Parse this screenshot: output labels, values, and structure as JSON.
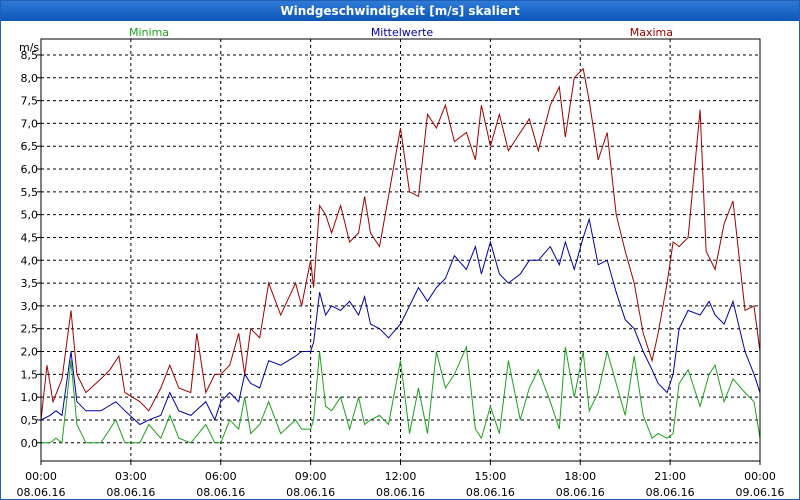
{
  "window": {
    "title": "Windgeschwindigkeit [m/s] skaliert"
  },
  "chart_data": {
    "type": "line",
    "title": "Windgeschwindigkeit [m/s] skaliert",
    "ylabel": "m/s",
    "ylim": [
      -0.4,
      8.85
    ],
    "yticks": [
      "0,0",
      "0,5",
      "1,0",
      "1,5",
      "2,0",
      "2,5",
      "3,0",
      "3,5",
      "4,0",
      "4,5",
      "5,0",
      "5,5",
      "6,0",
      "6,5",
      "7,0",
      "7,5",
      "8,0",
      "8,5"
    ],
    "xlim_hours": [
      0,
      24
    ],
    "xticks": [
      {
        "time": "00:00",
        "date": "08.06.16"
      },
      {
        "time": "03:00",
        "date": "08.06.16"
      },
      {
        "time": "06:00",
        "date": "08.06.16"
      },
      {
        "time": "09:00",
        "date": "08.06.16"
      },
      {
        "time": "12:00",
        "date": "08.06.16"
      },
      {
        "time": "15:00",
        "date": "08.06.16"
      },
      {
        "time": "18:00",
        "date": "08.06.16"
      },
      {
        "time": "21:00",
        "date": "08.06.16"
      },
      {
        "time": "00:00",
        "date": "09.06.16"
      }
    ],
    "grid": true,
    "legend_position": "top",
    "series": [
      {
        "name": "Minima",
        "color": "#1ea01e",
        "points": [
          [
            0,
            0
          ],
          [
            0.3,
            0
          ],
          [
            0.5,
            0.1
          ],
          [
            0.7,
            0
          ],
          [
            1,
            1.8
          ],
          [
            1.2,
            0.4
          ],
          [
            1.5,
            0
          ],
          [
            2,
            0
          ],
          [
            2.5,
            0.5
          ],
          [
            2.8,
            0
          ],
          [
            3.3,
            0
          ],
          [
            3.6,
            0.4
          ],
          [
            4,
            0.1
          ],
          [
            4.3,
            0.6
          ],
          [
            4.6,
            0.1
          ],
          [
            5,
            0
          ],
          [
            5.5,
            0.4
          ],
          [
            5.8,
            0
          ],
          [
            6,
            0
          ],
          [
            6.3,
            0.5
          ],
          [
            6.6,
            0.3
          ],
          [
            6.8,
            1
          ],
          [
            7,
            0.2
          ],
          [
            7.3,
            0.4
          ],
          [
            7.6,
            0.9
          ],
          [
            8,
            0.2
          ],
          [
            8.5,
            0.5
          ],
          [
            8.7,
            0.3
          ],
          [
            9,
            0.3
          ],
          [
            9.1,
            0.5
          ],
          [
            9.3,
            2
          ],
          [
            9.5,
            0.8
          ],
          [
            9.7,
            0.7
          ],
          [
            10,
            1
          ],
          [
            10.3,
            0.3
          ],
          [
            10.6,
            1
          ],
          [
            10.8,
            0.4
          ],
          [
            11,
            0.5
          ],
          [
            11.3,
            0.6
          ],
          [
            11.6,
            0.4
          ],
          [
            12,
            1.8
          ],
          [
            12.3,
            0.2
          ],
          [
            12.6,
            1.2
          ],
          [
            12.9,
            0.2
          ],
          [
            13.2,
            2
          ],
          [
            13.5,
            1.2
          ],
          [
            13.8,
            1.5
          ],
          [
            14.2,
            2.1
          ],
          [
            14.5,
            0.3
          ],
          [
            14.7,
            0.1
          ],
          [
            15,
            0.8
          ],
          [
            15.3,
            0.2
          ],
          [
            15.6,
            1.8
          ],
          [
            16,
            0.5
          ],
          [
            16.3,
            1.2
          ],
          [
            16.6,
            1.6
          ],
          [
            17,
            0.9
          ],
          [
            17.3,
            0.3
          ],
          [
            17.5,
            2.1
          ],
          [
            17.8,
            1
          ],
          [
            18.1,
            2
          ],
          [
            18.3,
            0.7
          ],
          [
            18.6,
            1.1
          ],
          [
            18.9,
            2
          ],
          [
            19.2,
            1.3
          ],
          [
            19.5,
            0.6
          ],
          [
            19.8,
            1.9
          ],
          [
            20.1,
            0.6
          ],
          [
            20.4,
            0.1
          ],
          [
            20.6,
            0.2
          ],
          [
            20.9,
            0.1
          ],
          [
            21.1,
            0.2
          ],
          [
            21.3,
            1.3
          ],
          [
            21.6,
            1.6
          ],
          [
            22,
            0.8
          ],
          [
            22.3,
            1.5
          ],
          [
            22.5,
            1.7
          ],
          [
            22.8,
            0.9
          ],
          [
            23.1,
            1.4
          ],
          [
            23.5,
            1.1
          ],
          [
            23.8,
            0.9
          ],
          [
            24,
            0.1
          ]
        ]
      },
      {
        "name": "Mittelwerte",
        "color": "#0000a8",
        "points": [
          [
            0,
            0.5
          ],
          [
            0.3,
            0.6
          ],
          [
            0.5,
            0.7
          ],
          [
            0.7,
            0.6
          ],
          [
            1,
            2
          ],
          [
            1.2,
            0.9
          ],
          [
            1.5,
            0.7
          ],
          [
            2,
            0.7
          ],
          [
            2.5,
            0.9
          ],
          [
            2.8,
            0.7
          ],
          [
            3.3,
            0.4
          ],
          [
            3.6,
            0.5
          ],
          [
            4,
            0.6
          ],
          [
            4.3,
            1.1
          ],
          [
            4.6,
            0.7
          ],
          [
            5,
            0.6
          ],
          [
            5.5,
            0.9
          ],
          [
            5.8,
            0.5
          ],
          [
            6,
            0.9
          ],
          [
            6.3,
            1.1
          ],
          [
            6.6,
            0.9
          ],
          [
            6.8,
            1.5
          ],
          [
            7,
            1.3
          ],
          [
            7.3,
            1.2
          ],
          [
            7.6,
            1.8
          ],
          [
            8,
            1.7
          ],
          [
            8.5,
            1.9
          ],
          [
            8.7,
            2
          ],
          [
            9,
            2
          ],
          [
            9.1,
            2.2
          ],
          [
            9.3,
            3.3
          ],
          [
            9.5,
            2.8
          ],
          [
            9.7,
            3
          ],
          [
            10,
            2.9
          ],
          [
            10.3,
            3.1
          ],
          [
            10.6,
            2.8
          ],
          [
            10.8,
            3.2
          ],
          [
            11,
            2.6
          ],
          [
            11.3,
            2.5
          ],
          [
            11.6,
            2.3
          ],
          [
            12,
            2.6
          ],
          [
            12.3,
            3
          ],
          [
            12.6,
            3.4
          ],
          [
            12.9,
            3.1
          ],
          [
            13.2,
            3.4
          ],
          [
            13.5,
            3.6
          ],
          [
            13.8,
            4.1
          ],
          [
            14.2,
            3.8
          ],
          [
            14.5,
            4.3
          ],
          [
            14.7,
            3.7
          ],
          [
            15,
            4.4
          ],
          [
            15.3,
            3.7
          ],
          [
            15.6,
            3.5
          ],
          [
            16,
            3.7
          ],
          [
            16.3,
            4
          ],
          [
            16.6,
            4
          ],
          [
            17,
            4.3
          ],
          [
            17.3,
            3.9
          ],
          [
            17.5,
            4.4
          ],
          [
            17.8,
            3.8
          ],
          [
            18.1,
            4.5
          ],
          [
            18.3,
            4.9
          ],
          [
            18.6,
            3.9
          ],
          [
            18.9,
            4
          ],
          [
            19.2,
            3.3
          ],
          [
            19.5,
            2.7
          ],
          [
            19.8,
            2.5
          ],
          [
            20.1,
            2
          ],
          [
            20.4,
            1.6
          ],
          [
            20.6,
            1.3
          ],
          [
            20.9,
            1.1
          ],
          [
            21.1,
            1.5
          ],
          [
            21.3,
            2.5
          ],
          [
            21.6,
            2.9
          ],
          [
            22,
            2.8
          ],
          [
            22.3,
            3.1
          ],
          [
            22.5,
            2.8
          ],
          [
            22.8,
            2.6
          ],
          [
            23.1,
            3.1
          ],
          [
            23.5,
            2
          ],
          [
            23.8,
            1.5
          ],
          [
            24,
            1.1
          ]
        ]
      },
      {
        "name": "Maxima",
        "color": "#a00000",
        "points": [
          [
            0,
            0.5
          ],
          [
            0.2,
            1.7
          ],
          [
            0.4,
            0.9
          ],
          [
            0.7,
            1.4
          ],
          [
            1,
            2.9
          ],
          [
            1.2,
            1.5
          ],
          [
            1.5,
            1.1
          ],
          [
            2,
            1.4
          ],
          [
            2.3,
            1.6
          ],
          [
            2.6,
            1.9
          ],
          [
            2.8,
            1.1
          ],
          [
            3.3,
            0.9
          ],
          [
            3.6,
            0.7
          ],
          [
            4,
            1.2
          ],
          [
            4.3,
            1.7
          ],
          [
            4.6,
            1.2
          ],
          [
            5,
            1.1
          ],
          [
            5.2,
            2.4
          ],
          [
            5.5,
            1.1
          ],
          [
            5.8,
            1.5
          ],
          [
            6,
            1.5
          ],
          [
            6.3,
            1.7
          ],
          [
            6.6,
            2.4
          ],
          [
            6.8,
            1.5
          ],
          [
            7,
            2.5
          ],
          [
            7.3,
            2.3
          ],
          [
            7.6,
            3.5
          ],
          [
            8,
            2.8
          ],
          [
            8.5,
            3.5
          ],
          [
            8.7,
            3
          ],
          [
            9,
            4
          ],
          [
            9.1,
            3.4
          ],
          [
            9.3,
            5.2
          ],
          [
            9.5,
            5
          ],
          [
            9.7,
            4.6
          ],
          [
            10,
            5.2
          ],
          [
            10.3,
            4.4
          ],
          [
            10.6,
            4.6
          ],
          [
            10.8,
            5.4
          ],
          [
            11,
            4.6
          ],
          [
            11.3,
            4.3
          ],
          [
            11.6,
            5.4
          ],
          [
            12,
            6.9
          ],
          [
            12.3,
            5.5
          ],
          [
            12.6,
            5.4
          ],
          [
            12.9,
            7.2
          ],
          [
            13.2,
            6.9
          ],
          [
            13.5,
            7.4
          ],
          [
            13.8,
            6.6
          ],
          [
            14.2,
            6.8
          ],
          [
            14.5,
            6.2
          ],
          [
            14.7,
            7.4
          ],
          [
            15,
            6.5
          ],
          [
            15.3,
            7.2
          ],
          [
            15.6,
            6.4
          ],
          [
            16,
            6.8
          ],
          [
            16.3,
            7.1
          ],
          [
            16.6,
            6.4
          ],
          [
            17,
            7.4
          ],
          [
            17.3,
            7.8
          ],
          [
            17.5,
            6.7
          ],
          [
            17.8,
            8
          ],
          [
            18.1,
            8.2
          ],
          [
            18.3,
            7.5
          ],
          [
            18.6,
            6.2
          ],
          [
            18.9,
            6.8
          ],
          [
            19.2,
            5
          ],
          [
            19.5,
            4.2
          ],
          [
            19.8,
            3.5
          ],
          [
            20.1,
            2.4
          ],
          [
            20.4,
            1.8
          ],
          [
            20.6,
            2.4
          ],
          [
            20.9,
            3.5
          ],
          [
            21.1,
            4.4
          ],
          [
            21.3,
            4.3
          ],
          [
            21.6,
            4.5
          ],
          [
            22,
            7.3
          ],
          [
            22.2,
            4.2
          ],
          [
            22.5,
            3.8
          ],
          [
            22.8,
            4.8
          ],
          [
            23.1,
            5.3
          ],
          [
            23.5,
            2.9
          ],
          [
            23.8,
            3
          ],
          [
            24,
            2
          ]
        ]
      }
    ]
  }
}
